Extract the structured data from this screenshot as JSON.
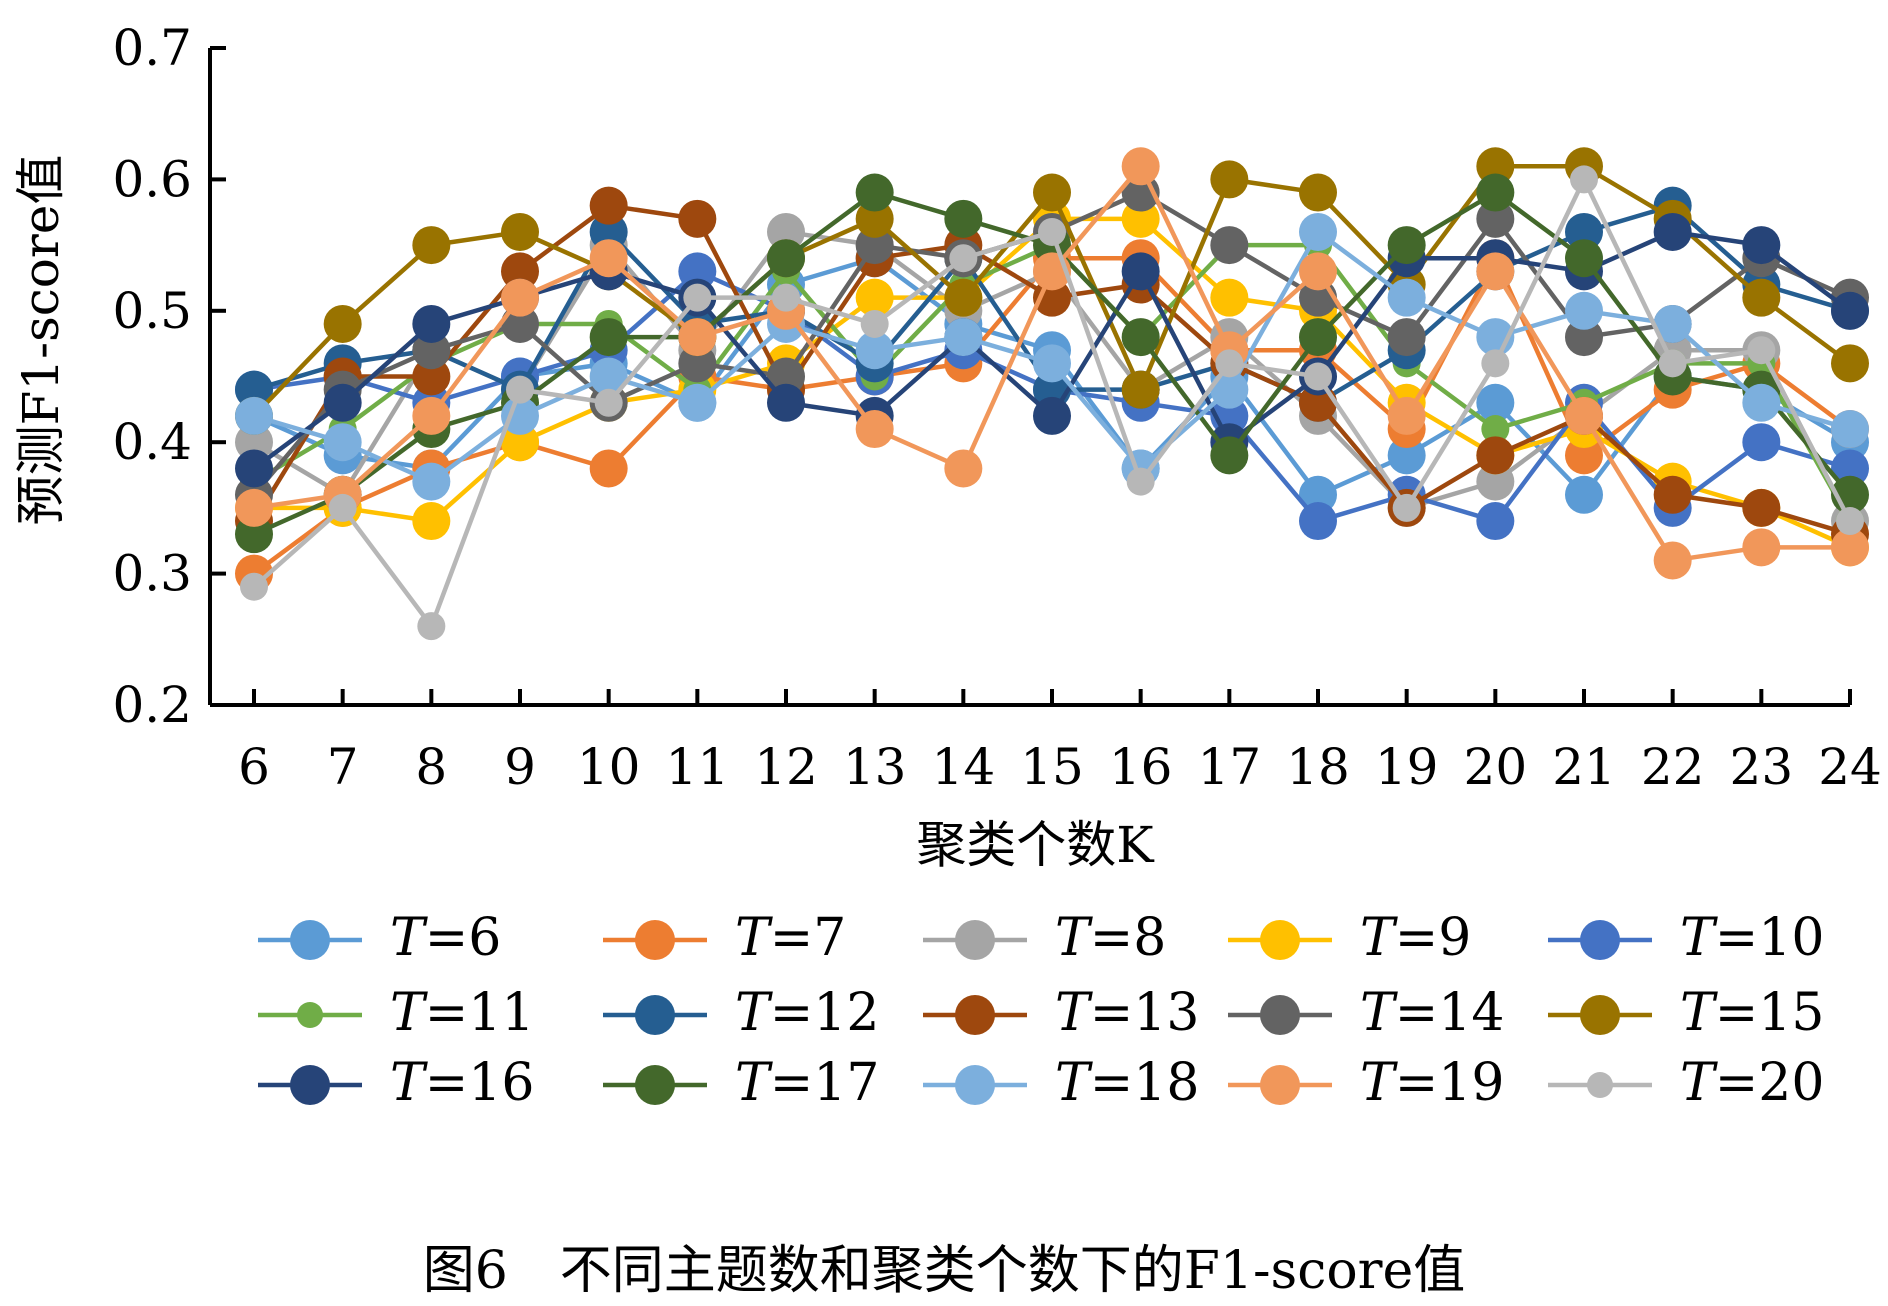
{
  "chart_data": {
    "type": "line",
    "xlabel": "聚类个数K",
    "ylabel": "预测F1-score值",
    "x": [
      6,
      7,
      8,
      9,
      10,
      11,
      12,
      13,
      14,
      15,
      16,
      17,
      18,
      19,
      20,
      21,
      22,
      23,
      24
    ],
    "ylim": [
      0.2,
      0.7
    ],
    "yticks": [
      "0.2",
      "0.3",
      "0.4",
      "0.5",
      "0.6",
      "0.7"
    ],
    "xticks": [
      "6",
      "7",
      "8",
      "9",
      "10",
      "11",
      "12",
      "13",
      "14",
      "15",
      "16",
      "17",
      "18",
      "19",
      "20",
      "21",
      "22",
      "23",
      "24"
    ],
    "grid": false,
    "legend_position": "bottom",
    "series": [
      {
        "name": "T=6",
        "color": "#5B9BD5",
        "values": [
          0.42,
          0.39,
          0.38,
          0.45,
          0.46,
          0.43,
          0.52,
          0.54,
          0.49,
          0.47,
          0.38,
          0.45,
          0.36,
          0.39,
          0.43,
          0.36,
          0.45,
          0.44,
          0.4
        ]
      },
      {
        "name": "T=7",
        "color": "#ED7D31",
        "values": [
          0.3,
          0.35,
          0.38,
          0.4,
          0.38,
          0.45,
          0.44,
          0.45,
          0.46,
          0.54,
          0.54,
          0.47,
          0.47,
          0.41,
          0.54,
          0.39,
          0.44,
          0.46,
          0.41
        ]
      },
      {
        "name": "T=8",
        "color": "#A5A5A5",
        "values": [
          0.4,
          0.36,
          0.47,
          0.44,
          0.55,
          0.47,
          0.56,
          0.55,
          0.5,
          0.53,
          0.44,
          0.48,
          0.42,
          0.35,
          0.37,
          0.42,
          0.47,
          0.47,
          0.34
        ]
      },
      {
        "name": "T=9",
        "color": "#FFC000",
        "values": [
          0.35,
          0.35,
          0.34,
          0.4,
          0.43,
          0.44,
          0.46,
          0.51,
          0.51,
          0.57,
          0.57,
          0.51,
          0.5,
          0.43,
          0.39,
          0.41,
          0.37,
          0.35,
          0.32
        ]
      },
      {
        "name": "T=10",
        "color": "#4472C4",
        "values": [
          0.44,
          0.45,
          0.43,
          0.45,
          0.47,
          0.53,
          0.5,
          0.45,
          0.47,
          0.44,
          0.43,
          0.42,
          0.34,
          0.36,
          0.34,
          0.43,
          0.35,
          0.4,
          0.38
        ]
      },
      {
        "name": "T=11",
        "color": "#70AD47",
        "values": [
          0.37,
          0.41,
          0.46,
          0.49,
          0.49,
          0.44,
          0.53,
          0.45,
          0.52,
          0.55,
          0.48,
          0.55,
          0.55,
          0.46,
          0.41,
          0.43,
          0.46,
          0.46,
          0.34
        ]
      },
      {
        "name": "T=12",
        "color": "#255E91",
        "values": [
          0.44,
          0.46,
          0.47,
          0.44,
          0.56,
          0.49,
          0.5,
          0.46,
          0.54,
          0.44,
          0.44,
          0.46,
          0.43,
          0.47,
          0.53,
          0.56,
          0.58,
          0.52,
          0.5
        ]
      },
      {
        "name": "T=13",
        "color": "#9E480E",
        "values": [
          0.34,
          0.45,
          0.45,
          0.53,
          0.58,
          0.57,
          0.44,
          0.54,
          0.55,
          0.51,
          0.52,
          0.46,
          0.43,
          0.35,
          0.39,
          0.42,
          0.36,
          0.35,
          0.33
        ]
      },
      {
        "name": "T=14",
        "color": "#636363",
        "values": [
          0.36,
          0.44,
          0.47,
          0.49,
          0.43,
          0.46,
          0.45,
          0.55,
          0.54,
          0.56,
          0.59,
          0.55,
          0.51,
          0.48,
          0.57,
          0.48,
          0.49,
          0.54,
          0.51
        ]
      },
      {
        "name": "T=15",
        "color": "#997300",
        "values": [
          0.42,
          0.49,
          0.55,
          0.56,
          0.53,
          0.48,
          0.54,
          0.57,
          0.51,
          0.59,
          0.44,
          0.6,
          0.59,
          0.52,
          0.61,
          0.61,
          0.57,
          0.51,
          0.46
        ]
      },
      {
        "name": "T=16",
        "color": "#264478",
        "values": [
          0.38,
          0.43,
          0.49,
          0.51,
          0.53,
          0.51,
          0.43,
          0.42,
          0.48,
          0.42,
          0.53,
          0.4,
          0.45,
          0.54,
          0.54,
          0.53,
          0.56,
          0.55,
          0.5
        ]
      },
      {
        "name": "T=17",
        "color": "#43682B",
        "values": [
          0.33,
          0.36,
          0.41,
          0.43,
          0.48,
          0.48,
          0.54,
          0.59,
          0.57,
          0.55,
          0.48,
          0.39,
          0.48,
          0.55,
          0.59,
          0.54,
          0.45,
          0.44,
          0.36
        ]
      },
      {
        "name": "T=18",
        "color": "#7CAFDD",
        "values": [
          0.42,
          0.4,
          0.37,
          0.42,
          0.45,
          0.43,
          0.49,
          0.47,
          0.48,
          0.46,
          0.38,
          0.44,
          0.56,
          0.51,
          0.48,
          0.5,
          0.49,
          0.43,
          0.41
        ]
      },
      {
        "name": "T=19",
        "color": "#F1975A",
        "values": [
          0.35,
          0.36,
          0.42,
          0.51,
          0.54,
          0.48,
          0.5,
          0.41,
          0.38,
          0.53,
          0.61,
          0.47,
          0.53,
          0.42,
          0.53,
          0.42,
          0.31,
          0.32,
          0.32
        ]
      },
      {
        "name": "T=20",
        "color": "#B7B7B7",
        "values": [
          0.29,
          0.35,
          0.26,
          0.44,
          0.43,
          0.51,
          0.51,
          0.49,
          0.54,
          0.56,
          0.37,
          0.46,
          0.45,
          0.35,
          0.46,
          0.6,
          0.46,
          0.47,
          0.34
        ]
      }
    ]
  },
  "legend": [
    {
      "prefix": "T",
      "suffix": "=6"
    },
    {
      "prefix": "T",
      "suffix": "=7"
    },
    {
      "prefix": "T",
      "suffix": "=8"
    },
    {
      "prefix": "T",
      "suffix": "=9"
    },
    {
      "prefix": "T",
      "suffix": "=10"
    },
    {
      "prefix": "T",
      "suffix": "=11"
    },
    {
      "prefix": "T",
      "suffix": "=12"
    },
    {
      "prefix": "T",
      "suffix": "=13"
    },
    {
      "prefix": "T",
      "suffix": "=14"
    },
    {
      "prefix": "T",
      "suffix": "=15"
    },
    {
      "prefix": "T",
      "suffix": "=16"
    },
    {
      "prefix": "T",
      "suffix": "=17"
    },
    {
      "prefix": "T",
      "suffix": "=18"
    },
    {
      "prefix": "T",
      "suffix": "=19"
    },
    {
      "prefix": "T",
      "suffix": "=20"
    }
  ],
  "caption": "图6　不同主题数和聚类个数下的F1-score值"
}
